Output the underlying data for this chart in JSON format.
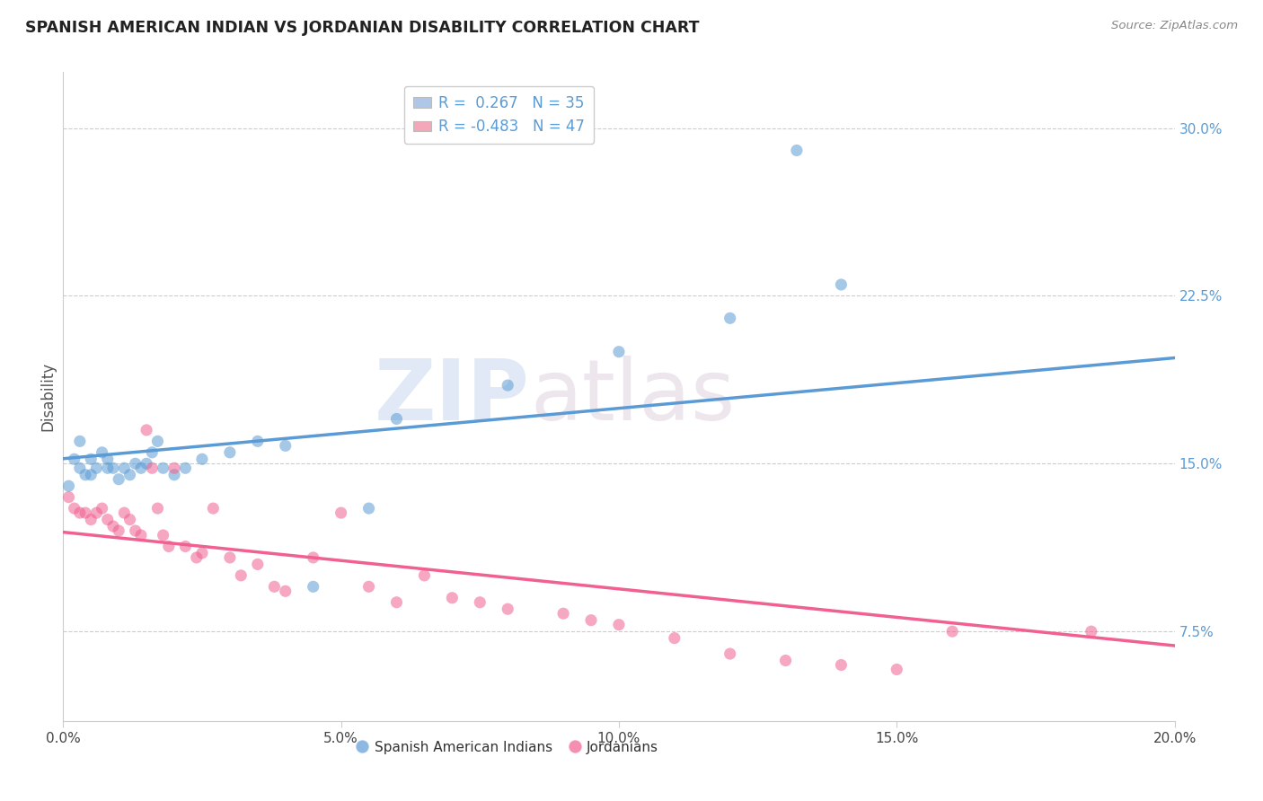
{
  "title": "SPANISH AMERICAN INDIAN VS JORDANIAN DISABILITY CORRELATION CHART",
  "source": "Source: ZipAtlas.com",
  "ylabel": "Disability",
  "legend1_label": "R =  0.267   N = 35",
  "legend2_label": "R = -0.483   N = 47",
  "blue_color": "#5b9bd5",
  "pink_color": "#f06090",
  "blue_fill": "#aec6e8",
  "pink_fill": "#f4a7b9",
  "right_yticklabels": [
    "7.5%",
    "15.0%",
    "22.5%",
    "30.0%"
  ],
  "right_ytick_vals": [
    0.075,
    0.15,
    0.225,
    0.3
  ],
  "xlim": [
    0.0,
    0.2
  ],
  "ylim": [
    0.035,
    0.325
  ],
  "watermark_zip": "ZIP",
  "watermark_atlas": "atlas",
  "blue_scatter_x": [
    0.001,
    0.002,
    0.003,
    0.003,
    0.004,
    0.005,
    0.005,
    0.006,
    0.007,
    0.008,
    0.008,
    0.009,
    0.01,
    0.011,
    0.012,
    0.013,
    0.014,
    0.015,
    0.016,
    0.017,
    0.018,
    0.02,
    0.022,
    0.025,
    0.03,
    0.035,
    0.04,
    0.045,
    0.055,
    0.06,
    0.08,
    0.1,
    0.12,
    0.14,
    0.132
  ],
  "blue_scatter_y": [
    0.14,
    0.152,
    0.148,
    0.16,
    0.145,
    0.152,
    0.145,
    0.148,
    0.155,
    0.148,
    0.152,
    0.148,
    0.143,
    0.148,
    0.145,
    0.15,
    0.148,
    0.15,
    0.155,
    0.16,
    0.148,
    0.145,
    0.148,
    0.152,
    0.155,
    0.16,
    0.158,
    0.095,
    0.13,
    0.17,
    0.185,
    0.2,
    0.215,
    0.23,
    0.29
  ],
  "pink_scatter_x": [
    0.001,
    0.002,
    0.003,
    0.004,
    0.005,
    0.006,
    0.007,
    0.008,
    0.009,
    0.01,
    0.011,
    0.012,
    0.013,
    0.014,
    0.015,
    0.016,
    0.017,
    0.018,
    0.019,
    0.02,
    0.022,
    0.024,
    0.025,
    0.027,
    0.03,
    0.032,
    0.035,
    0.038,
    0.04,
    0.045,
    0.05,
    0.055,
    0.06,
    0.065,
    0.07,
    0.075,
    0.08,
    0.09,
    0.095,
    0.1,
    0.11,
    0.12,
    0.13,
    0.14,
    0.15,
    0.16,
    0.185
  ],
  "pink_scatter_y": [
    0.135,
    0.13,
    0.128,
    0.128,
    0.125,
    0.128,
    0.13,
    0.125,
    0.122,
    0.12,
    0.128,
    0.125,
    0.12,
    0.118,
    0.165,
    0.148,
    0.13,
    0.118,
    0.113,
    0.148,
    0.113,
    0.108,
    0.11,
    0.13,
    0.108,
    0.1,
    0.105,
    0.095,
    0.093,
    0.108,
    0.128,
    0.095,
    0.088,
    0.1,
    0.09,
    0.088,
    0.085,
    0.083,
    0.08,
    0.078,
    0.072,
    0.065,
    0.062,
    0.06,
    0.058,
    0.075,
    0.075
  ]
}
